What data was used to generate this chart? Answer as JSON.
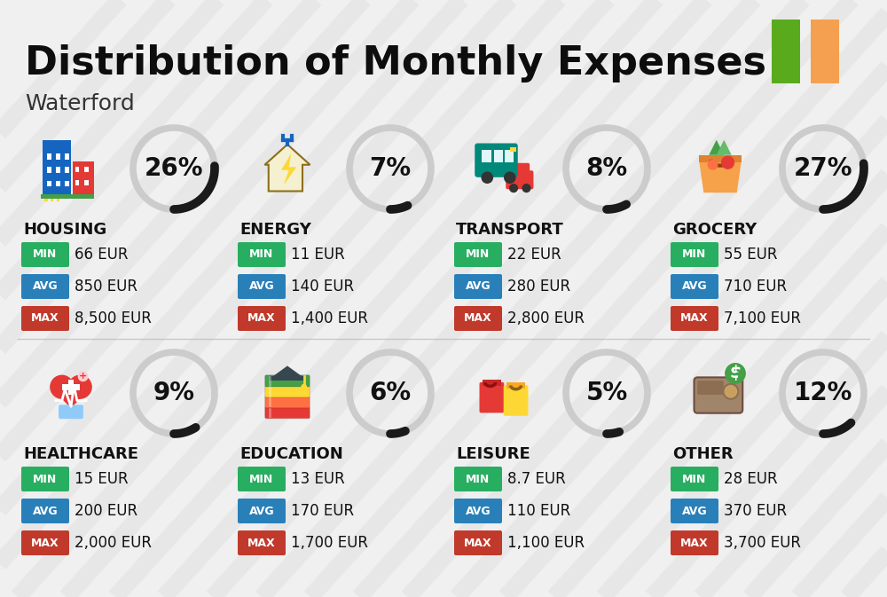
{
  "title": "Distribution of Monthly Expenses",
  "subtitle": "Waterford",
  "background_color": "#f0f0f0",
  "ireland_green": "#5aaa1e",
  "ireland_orange": "#f5a050",
  "categories": [
    {
      "name": "HOUSING",
      "pct": 26,
      "min": "66 EUR",
      "avg": "850 EUR",
      "max": "8,500 EUR",
      "row": 0,
      "col": 0
    },
    {
      "name": "ENERGY",
      "pct": 7,
      "min": "11 EUR",
      "avg": "140 EUR",
      "max": "1,400 EUR",
      "row": 0,
      "col": 1
    },
    {
      "name": "TRANSPORT",
      "pct": 8,
      "min": "22 EUR",
      "avg": "280 EUR",
      "max": "2,800 EUR",
      "row": 0,
      "col": 2
    },
    {
      "name": "GROCERY",
      "pct": 27,
      "min": "55 EUR",
      "avg": "710 EUR",
      "max": "7,100 EUR",
      "row": 0,
      "col": 3
    },
    {
      "name": "HEALTHCARE",
      "pct": 9,
      "min": "15 EUR",
      "avg": "200 EUR",
      "max": "2,000 EUR",
      "row": 1,
      "col": 0
    },
    {
      "name": "EDUCATION",
      "pct": 6,
      "min": "13 EUR",
      "avg": "170 EUR",
      "max": "1,700 EUR",
      "row": 1,
      "col": 1
    },
    {
      "name": "LEISURE",
      "pct": 5,
      "min": "8.7 EUR",
      "avg": "110 EUR",
      "max": "1,100 EUR",
      "row": 1,
      "col": 2
    },
    {
      "name": "OTHER",
      "pct": 12,
      "min": "28 EUR",
      "avg": "370 EUR",
      "max": "3,700 EUR",
      "row": 1,
      "col": 3
    }
  ],
  "min_color": "#27ae60",
  "avg_color": "#2980b9",
  "max_color": "#c0392b",
  "stripe_color": "#d8d8d8",
  "circle_gray": "#cccccc",
  "circle_dark": "#1a1a1a"
}
